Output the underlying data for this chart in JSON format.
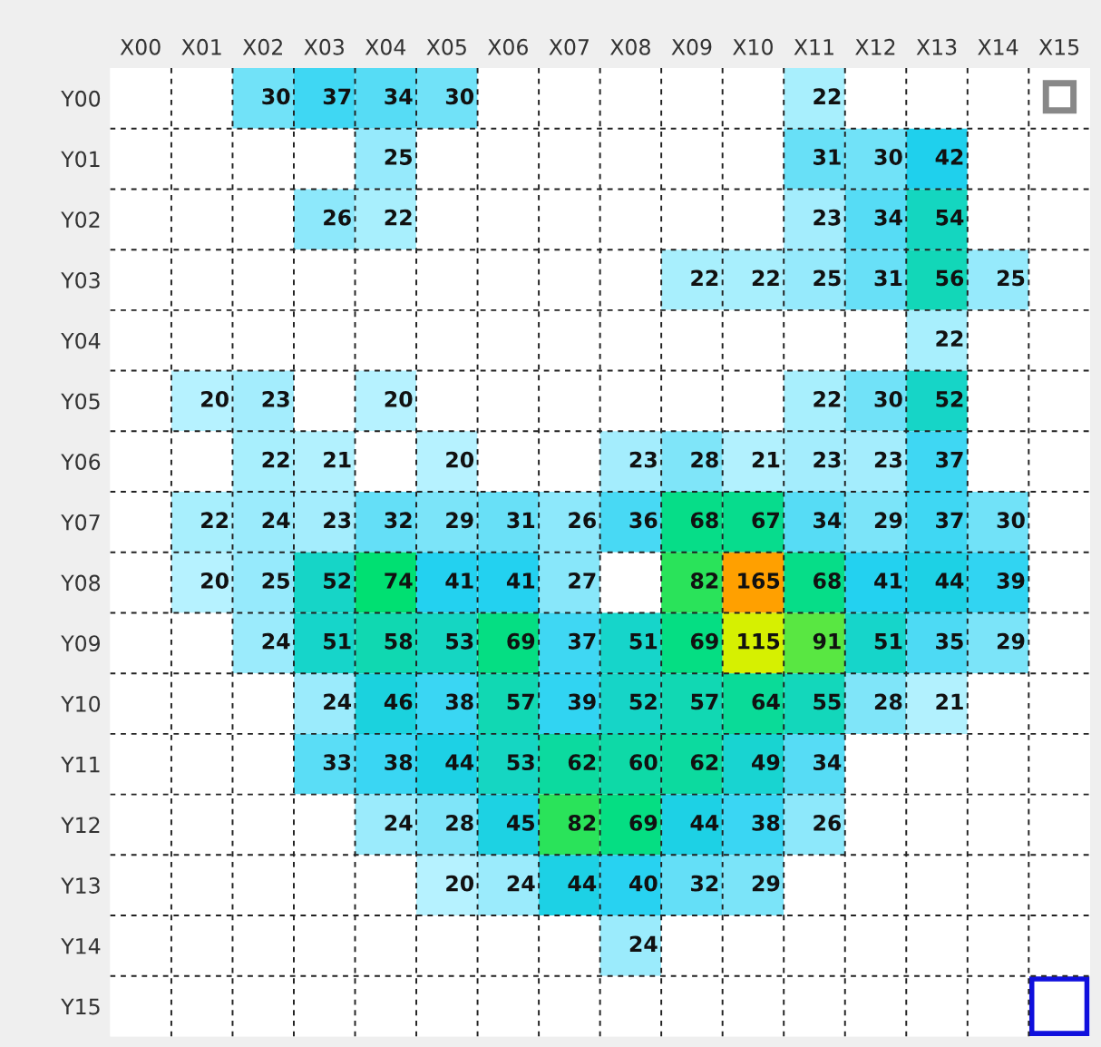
{
  "chart_data": {
    "type": "heatmap",
    "categories": [
      "X00",
      "X01",
      "X02",
      "X03",
      "X04",
      "X05",
      "X06",
      "X07",
      "X08",
      "X09",
      "X10",
      "X11",
      "X12",
      "X13",
      "X14",
      "X15"
    ],
    "y_categories": [
      "Y00",
      "Y01",
      "Y02",
      "Y03",
      "Y04",
      "Y05",
      "Y06",
      "Y07",
      "Y08",
      "Y09",
      "Y10",
      "Y11",
      "Y12",
      "Y13",
      "Y14",
      "Y15"
    ],
    "cells": [
      [
        null,
        null,
        30,
        37,
        34,
        30,
        null,
        null,
        null,
        null,
        null,
        22,
        null,
        null,
        null,
        null
      ],
      [
        null,
        null,
        null,
        null,
        25,
        null,
        null,
        null,
        null,
        null,
        null,
        31,
        30,
        42,
        null,
        null
      ],
      [
        null,
        null,
        null,
        26,
        22,
        null,
        null,
        null,
        null,
        null,
        null,
        23,
        34,
        54,
        null,
        null
      ],
      [
        null,
        null,
        null,
        null,
        null,
        null,
        null,
        null,
        null,
        22,
        22,
        25,
        31,
        56,
        25,
        null
      ],
      [
        null,
        null,
        null,
        null,
        null,
        null,
        null,
        null,
        null,
        null,
        null,
        null,
        null,
        22,
        null,
        null
      ],
      [
        null,
        20,
        23,
        null,
        20,
        null,
        null,
        null,
        null,
        null,
        null,
        22,
        30,
        52,
        null,
        null
      ],
      [
        null,
        null,
        22,
        21,
        null,
        20,
        null,
        null,
        23,
        28,
        21,
        23,
        23,
        37,
        null,
        null
      ],
      [
        null,
        22,
        24,
        23,
        32,
        29,
        31,
        26,
        36,
        68,
        67,
        34,
        29,
        37,
        30,
        null
      ],
      [
        null,
        20,
        25,
        52,
        74,
        41,
        41,
        27,
        null,
        82,
        165,
        68,
        41,
        44,
        39,
        null
      ],
      [
        null,
        null,
        24,
        51,
        58,
        53,
        69,
        37,
        51,
        69,
        115,
        91,
        51,
        35,
        29,
        null
      ],
      [
        null,
        null,
        null,
        24,
        46,
        38,
        57,
        39,
        52,
        57,
        64,
        55,
        28,
        21,
        null,
        null
      ],
      [
        null,
        null,
        null,
        33,
        38,
        44,
        53,
        62,
        60,
        62,
        49,
        34,
        null,
        null,
        null,
        null
      ],
      [
        null,
        null,
        null,
        null,
        24,
        28,
        45,
        82,
        69,
        44,
        38,
        26,
        null,
        null,
        null,
        null
      ],
      [
        null,
        null,
        null,
        null,
        null,
        20,
        24,
        44,
        40,
        32,
        29,
        null,
        null,
        null,
        null,
        null
      ],
      [
        null,
        null,
        null,
        null,
        null,
        null,
        null,
        null,
        24,
        null,
        null,
        null,
        null,
        null,
        null,
        null
      ],
      [
        null,
        null,
        null,
        null,
        null,
        null,
        null,
        null,
        null,
        null,
        null,
        null,
        null,
        null,
        null,
        null
      ]
    ],
    "data_labels": true,
    "grid": true
  }
}
